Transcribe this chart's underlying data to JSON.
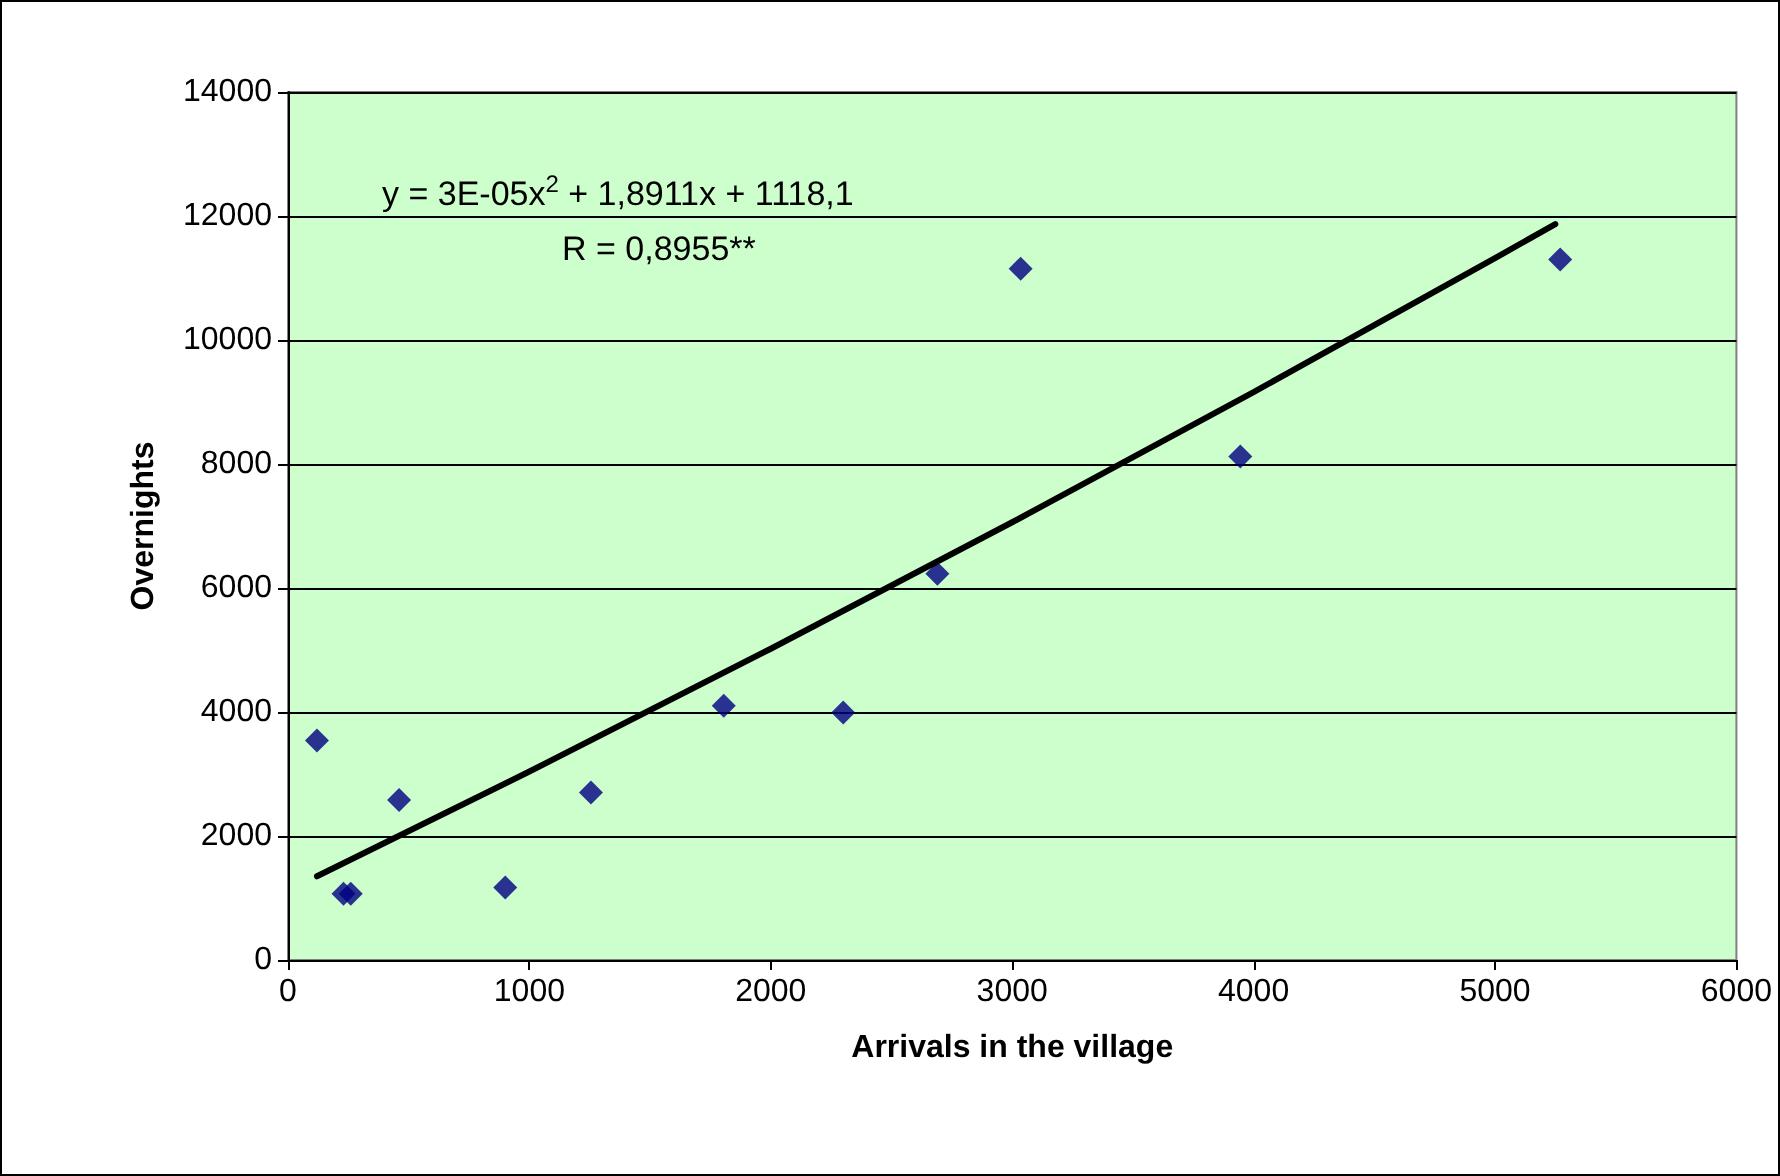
{
  "chart_data": {
    "type": "scatter",
    "xlabel": "Arrivals in the village",
    "ylabel": "Overnights",
    "annotations": [
      "y = 3E-05x$^{2}$ + 1,8911x + 1118,1",
      "R = 0,8955**"
    ],
    "xlim": [
      0,
      6000
    ],
    "xticks": [
      0,
      1000,
      2000,
      3000,
      4000,
      5000,
      6000
    ],
    "ylim": [
      0,
      14000
    ],
    "yticks": [
      0,
      2000,
      4000,
      6000,
      8000,
      10000,
      12000,
      14000
    ],
    "grid": "y",
    "marker": "diamond",
    "series": [
      {
        "color": "#000080",
        "x": [
          120,
          230,
          260,
          460,
          900,
          1255,
          1805,
          2300,
          2690,
          3035,
          3945,
          5270
        ],
        "values": [
          3540,
          1070,
          1070,
          2580,
          1170,
          2700,
          4100,
          3990,
          6230,
          11150,
          8120,
          11300
        ]
      },
      {
        "type": "line",
        "color": "#000000",
        "marker": "none",
        "line_style": "solid",
        "x": [
          120,
          1000,
          2000,
          3000,
          4000,
          5000,
          5250
        ],
        "values": [
          1350,
          3040,
          5020,
          7060,
          9160,
          11320,
          11870
        ]
      }
    ]
  }
}
